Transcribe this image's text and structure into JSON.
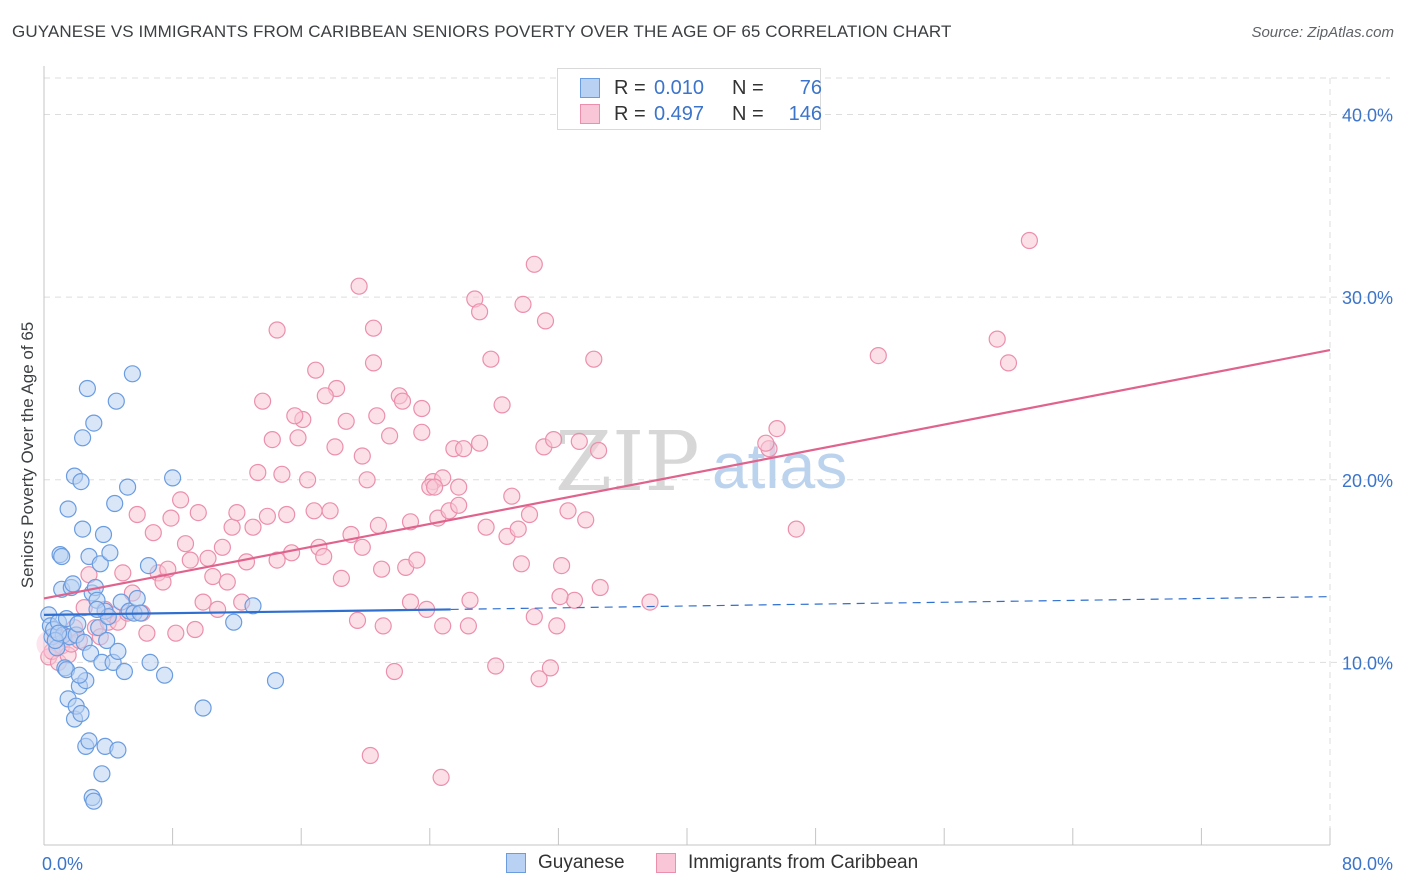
{
  "title": "GUYANESE VS IMMIGRANTS FROM CARIBBEAN SENIORS POVERTY OVER THE AGE OF 65 CORRELATION CHART",
  "source": "Source: ZipAtlas.com",
  "watermark": {
    "zip": "ZIP",
    "atlas": "atlas"
  },
  "legend_top": {
    "rows": [
      {
        "r_label": "R =",
        "r_value": "0.010",
        "n_label": "N =",
        "n_value": "76"
      },
      {
        "r_label": "R =",
        "r_value": "0.497",
        "n_label": "N =",
        "n_value": "146"
      }
    ]
  },
  "legend_bottom": {
    "series1": "Guyanese",
    "series2": "Immigrants from Caribbean"
  },
  "colors": {
    "blue_fill": "#b9d2f3",
    "blue_stroke": "#6a9ce0",
    "blue_line": "#2f6fcf",
    "pink_fill": "#f8c6d6",
    "pink_stroke": "#ec8fac",
    "pink_line": "#e0638d",
    "tick_label": "#3b74c9",
    "grid": "#dddddd"
  },
  "chart_data": {
    "type": "scatter",
    "title": "GUYANESE VS IMMIGRANTS FROM CARIBBEAN SENIORS POVERTY OVER THE AGE OF 65 CORRELATION CHART",
    "xlabel": "",
    "ylabel": "Seniors Poverty Over the Age of 65",
    "xlim": [
      0,
      80
    ],
    "ylim": [
      0,
      42
    ],
    "x_tick_labels": [
      "0.0%",
      "80.0%"
    ],
    "y_ticks": [
      10,
      20,
      30,
      40
    ],
    "y_tick_labels": [
      "10.0%",
      "20.0%",
      "30.0%",
      "40.0%"
    ],
    "grid": true,
    "legend_position": "top-center",
    "series": [
      {
        "name": "Guyanese",
        "R": 0.01,
        "N": 76,
        "trend": {
          "x0": 0,
          "y0": 12.6,
          "x1": 25.3,
          "y1": 12.9,
          "dash_x1": 80,
          "dash_y1": 13.6
        },
        "points": [
          [
            0.3,
            12.6
          ],
          [
            0.4,
            12.0
          ],
          [
            0.5,
            11.4
          ],
          [
            0.6,
            11.8
          ],
          [
            0.8,
            10.8
          ],
          [
            0.9,
            12.2
          ],
          [
            1.0,
            15.9
          ],
          [
            1.1,
            14.0
          ],
          [
            1.2,
            11.5
          ],
          [
            1.3,
            9.7
          ],
          [
            1.4,
            12.4
          ],
          [
            1.5,
            18.4
          ],
          [
            1.6,
            11.4
          ],
          [
            1.7,
            14.1
          ],
          [
            1.8,
            14.3
          ],
          [
            1.9,
            20.2
          ],
          [
            2.0,
            11.5
          ],
          [
            2.1,
            12.1
          ],
          [
            2.2,
            8.7
          ],
          [
            2.3,
            19.9
          ],
          [
            2.4,
            17.3
          ],
          [
            2.5,
            11.1
          ],
          [
            2.6,
            9.0
          ],
          [
            2.7,
            25.0
          ],
          [
            2.8,
            15.8
          ],
          [
            2.9,
            10.5
          ],
          [
            3.0,
            13.8
          ],
          [
            3.1,
            23.1
          ],
          [
            3.2,
            14.1
          ],
          [
            3.3,
            13.4
          ],
          [
            3.4,
            11.9
          ],
          [
            3.5,
            15.4
          ],
          [
            3.6,
            10.0
          ],
          [
            3.7,
            17.0
          ],
          [
            3.8,
            12.8
          ],
          [
            3.9,
            11.2
          ],
          [
            4.0,
            12.5
          ],
          [
            4.1,
            16.0
          ],
          [
            4.3,
            10.0
          ],
          [
            4.4,
            18.7
          ],
          [
            4.5,
            24.3
          ],
          [
            4.6,
            10.6
          ],
          [
            4.8,
            13.3
          ],
          [
            5.0,
            9.5
          ],
          [
            5.2,
            19.6
          ],
          [
            5.3,
            12.8
          ],
          [
            5.5,
            25.8
          ],
          [
            5.6,
            12.7
          ],
          [
            5.8,
            13.5
          ],
          [
            6.0,
            12.7
          ],
          [
            6.5,
            15.3
          ],
          [
            6.6,
            10.0
          ],
          [
            7.5,
            9.3
          ],
          [
            9.9,
            7.5
          ],
          [
            11.8,
            12.2
          ],
          [
            13.0,
            13.1
          ],
          [
            14.4,
            9.0
          ],
          [
            8.0,
            20.1
          ],
          [
            1.1,
            15.8
          ],
          [
            1.5,
            8.0
          ],
          [
            1.9,
            6.9
          ],
          [
            2.0,
            7.6
          ],
          [
            2.3,
            7.2
          ],
          [
            2.6,
            5.4
          ],
          [
            2.8,
            5.7
          ],
          [
            3.0,
            2.6
          ],
          [
            3.1,
            2.4
          ],
          [
            3.6,
            3.9
          ],
          [
            3.8,
            5.4
          ],
          [
            4.6,
            5.2
          ],
          [
            2.4,
            22.3
          ],
          [
            1.4,
            9.6
          ],
          [
            0.7,
            11.2
          ],
          [
            0.9,
            11.6
          ],
          [
            2.2,
            9.3
          ],
          [
            3.3,
            12.9
          ]
        ]
      },
      {
        "name": "Immigrants from Caribbean",
        "R": 0.497,
        "N": 146,
        "trend": {
          "x0": 0,
          "y0": 13.5,
          "x1": 80,
          "y1": 27.1
        },
        "points": [
          [
            0.3,
            10.3
          ],
          [
            0.5,
            10.6
          ],
          [
            0.7,
            11.5
          ],
          [
            0.9,
            10.0
          ],
          [
            1.1,
            10.9
          ],
          [
            1.3,
            11.3
          ],
          [
            1.5,
            10.4
          ],
          [
            1.7,
            11.0
          ],
          [
            1.9,
            11.9
          ],
          [
            2.2,
            11.2
          ],
          [
            2.5,
            13.0
          ],
          [
            2.8,
            14.8
          ],
          [
            3.2,
            11.9
          ],
          [
            3.5,
            11.4
          ],
          [
            3.8,
            12.9
          ],
          [
            4.0,
            12.2
          ],
          [
            4.3,
            12.6
          ],
          [
            4.6,
            12.2
          ],
          [
            4.9,
            14.9
          ],
          [
            5.2,
            12.7
          ],
          [
            5.5,
            13.8
          ],
          [
            5.8,
            18.1
          ],
          [
            6.1,
            12.7
          ],
          [
            6.4,
            11.6
          ],
          [
            6.8,
            17.1
          ],
          [
            7.1,
            14.9
          ],
          [
            7.4,
            14.4
          ],
          [
            7.7,
            15.1
          ],
          [
            7.9,
            17.9
          ],
          [
            8.2,
            11.6
          ],
          [
            8.5,
            18.9
          ],
          [
            8.8,
            16.5
          ],
          [
            9.1,
            15.6
          ],
          [
            9.4,
            11.8
          ],
          [
            9.6,
            18.2
          ],
          [
            9.9,
            13.3
          ],
          [
            10.2,
            15.7
          ],
          [
            10.5,
            14.7
          ],
          [
            10.8,
            12.9
          ],
          [
            11.1,
            16.3
          ],
          [
            11.4,
            14.4
          ],
          [
            11.7,
            17.4
          ],
          [
            12.0,
            18.2
          ],
          [
            12.3,
            13.3
          ],
          [
            12.6,
            15.5
          ],
          [
            13.0,
            17.4
          ],
          [
            13.3,
            20.4
          ],
          [
            13.6,
            24.3
          ],
          [
            13.9,
            18.0
          ],
          [
            14.2,
            22.2
          ],
          [
            14.5,
            15.6
          ],
          [
            14.8,
            20.3
          ],
          [
            15.1,
            18.1
          ],
          [
            15.4,
            16.0
          ],
          [
            15.8,
            22.3
          ],
          [
            16.1,
            23.3
          ],
          [
            16.4,
            20.0
          ],
          [
            16.8,
            18.3
          ],
          [
            17.1,
            16.3
          ],
          [
            17.4,
            15.8
          ],
          [
            17.8,
            18.3
          ],
          [
            18.1,
            21.8
          ],
          [
            18.5,
            14.6
          ],
          [
            18.8,
            23.2
          ],
          [
            19.1,
            17.0
          ],
          [
            19.5,
            12.3
          ],
          [
            19.8,
            16.3
          ],
          [
            20.1,
            20.0
          ],
          [
            20.5,
            26.4
          ],
          [
            20.8,
            17.5
          ],
          [
            21.1,
            12.0
          ],
          [
            21.5,
            22.4
          ],
          [
            21.8,
            9.5
          ],
          [
            22.1,
            24.6
          ],
          [
            22.5,
            15.2
          ],
          [
            22.8,
            17.7
          ],
          [
            23.2,
            15.6
          ],
          [
            23.5,
            22.6
          ],
          [
            23.8,
            12.9
          ],
          [
            24.2,
            19.9
          ],
          [
            24.5,
            17.9
          ],
          [
            24.8,
            12.0
          ],
          [
            25.2,
            18.3
          ],
          [
            25.5,
            21.7
          ],
          [
            25.8,
            19.6
          ],
          [
            26.1,
            21.7
          ],
          [
            26.5,
            13.4
          ],
          [
            26.8,
            29.9
          ],
          [
            27.1,
            29.2
          ],
          [
            27.5,
            17.4
          ],
          [
            27.8,
            26.6
          ],
          [
            28.1,
            9.8
          ],
          [
            28.5,
            24.1
          ],
          [
            28.8,
            16.9
          ],
          [
            29.1,
            19.1
          ],
          [
            29.5,
            17.3
          ],
          [
            29.8,
            29.6
          ],
          [
            30.2,
            18.1
          ],
          [
            30.5,
            12.5
          ],
          [
            30.8,
            9.1
          ],
          [
            31.2,
            28.7
          ],
          [
            31.5,
            9.7
          ],
          [
            31.9,
            12.0
          ],
          [
            32.2,
            15.3
          ],
          [
            32.6,
            18.3
          ],
          [
            33.0,
            13.4
          ],
          [
            33.3,
            22.1
          ],
          [
            33.7,
            17.8
          ],
          [
            34.2,
            26.6
          ],
          [
            34.6,
            14.1
          ],
          [
            22.3,
            24.3
          ],
          [
            20.7,
            23.5
          ],
          [
            23.5,
            23.9
          ],
          [
            19.6,
            30.6
          ],
          [
            20.5,
            28.3
          ],
          [
            24.0,
            19.6
          ],
          [
            14.5,
            28.2
          ],
          [
            22.8,
            13.3
          ],
          [
            25.8,
            18.6
          ],
          [
            34.5,
            21.6
          ],
          [
            45.1,
            21.7
          ],
          [
            44.9,
            22.0
          ],
          [
            45.6,
            22.8
          ],
          [
            46.8,
            17.3
          ],
          [
            51.9,
            26.8
          ],
          [
            59.3,
            27.7
          ],
          [
            61.3,
            33.1
          ],
          [
            60.0,
            26.4
          ],
          [
            37.7,
            13.3
          ],
          [
            24.8,
            20.1
          ],
          [
            20.3,
            4.9
          ],
          [
            24.7,
            3.7
          ],
          [
            30.5,
            31.8
          ],
          [
            19.8,
            21.3
          ],
          [
            24.3,
            19.6
          ],
          [
            18.2,
            25.0
          ],
          [
            27.1,
            22.0
          ],
          [
            29.7,
            15.4
          ],
          [
            21.0,
            15.1
          ],
          [
            26.4,
            12.0
          ],
          [
            15.6,
            23.5
          ],
          [
            16.9,
            26.0
          ],
          [
            17.5,
            24.6
          ],
          [
            32.1,
            13.6
          ],
          [
            31.1,
            21.8
          ],
          [
            31.7,
            22.2
          ]
        ]
      }
    ]
  }
}
